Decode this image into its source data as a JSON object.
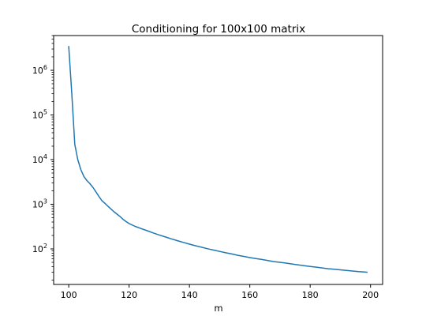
{
  "chart_data": {
    "type": "line",
    "title": "Conditioning for 100x100 matrix",
    "xlabel": "m",
    "ylabel": "",
    "xlim": [
      95,
      204
    ],
    "ylim": [
      16,
      6000000
    ],
    "yscale": "log",
    "grid": false,
    "line_color": "#1f77b4",
    "x_ticks": [
      {
        "value": 100,
        "label": "100"
      },
      {
        "value": 120,
        "label": "120"
      },
      {
        "value": 140,
        "label": "140"
      },
      {
        "value": 160,
        "label": "160"
      },
      {
        "value": 180,
        "label": "180"
      },
      {
        "value": 200,
        "label": "200"
      }
    ],
    "y_ticks": [
      {
        "value": 100,
        "base": "10",
        "exp": "2"
      },
      {
        "value": 1000,
        "base": "10",
        "exp": "3"
      },
      {
        "value": 10000,
        "base": "10",
        "exp": "4"
      },
      {
        "value": 100000,
        "base": "10",
        "exp": "5"
      },
      {
        "value": 1000000,
        "base": "10",
        "exp": "6"
      }
    ],
    "series": [
      {
        "x": [
          100,
          101,
          102,
          103,
          104,
          105,
          106,
          107,
          108,
          109,
          110,
          111,
          112,
          113,
          114,
          115,
          116,
          117,
          118,
          119,
          120,
          122,
          124,
          126,
          128,
          130,
          132,
          134,
          136,
          138,
          140,
          142,
          144,
          146,
          148,
          150,
          152,
          154,
          156,
          158,
          160,
          162,
          164,
          166,
          168,
          170,
          172,
          174,
          176,
          178,
          180,
          182,
          184,
          186,
          188,
          190,
          192,
          194,
          196,
          198,
          199
        ],
        "y": [
          3500000,
          300000,
          22000,
          10000,
          6000,
          4200,
          3400,
          2900,
          2400,
          1900,
          1500,
          1200,
          1050,
          900,
          780,
          680,
          600,
          530,
          460,
          410,
          370,
          320,
          285,
          255,
          228,
          205,
          185,
          168,
          153,
          140,
          128,
          118,
          109,
          101,
          94,
          88,
          82,
          77,
          72,
          68,
          64,
          61,
          58,
          55,
          52,
          50,
          48,
          46,
          44,
          42,
          40.5,
          39,
          37.5,
          36,
          35,
          34,
          33,
          32,
          31,
          30.5,
          30
        ]
      }
    ]
  }
}
